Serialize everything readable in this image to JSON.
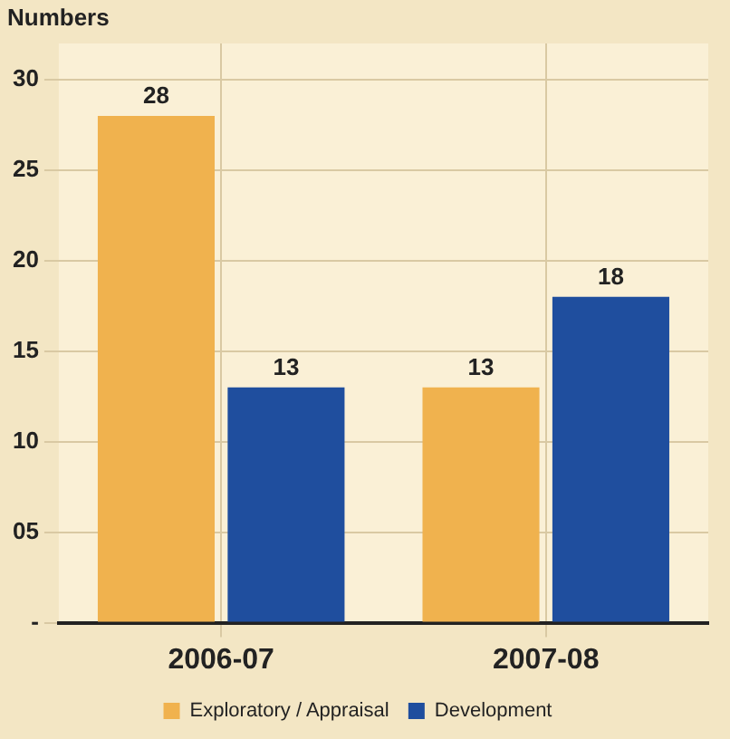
{
  "chart_data": {
    "type": "bar",
    "ylabel": "Numbers",
    "categories": [
      "2006-07",
      "2007-08"
    ],
    "series": [
      {
        "name": "Exploratory / Appraisal",
        "color": "#f0b24e",
        "values": [
          28,
          13
        ]
      },
      {
        "name": "Development",
        "color": "#1f4e9e",
        "values": [
          13,
          18
        ]
      }
    ],
    "ylim": [
      0,
      32
    ],
    "yticks": [
      {
        "value": 0,
        "label": "-"
      },
      {
        "value": 5,
        "label": "05"
      },
      10,
      15,
      20,
      25,
      30
    ],
    "grid": true,
    "legend": "bottom",
    "data_labels": true
  }
}
